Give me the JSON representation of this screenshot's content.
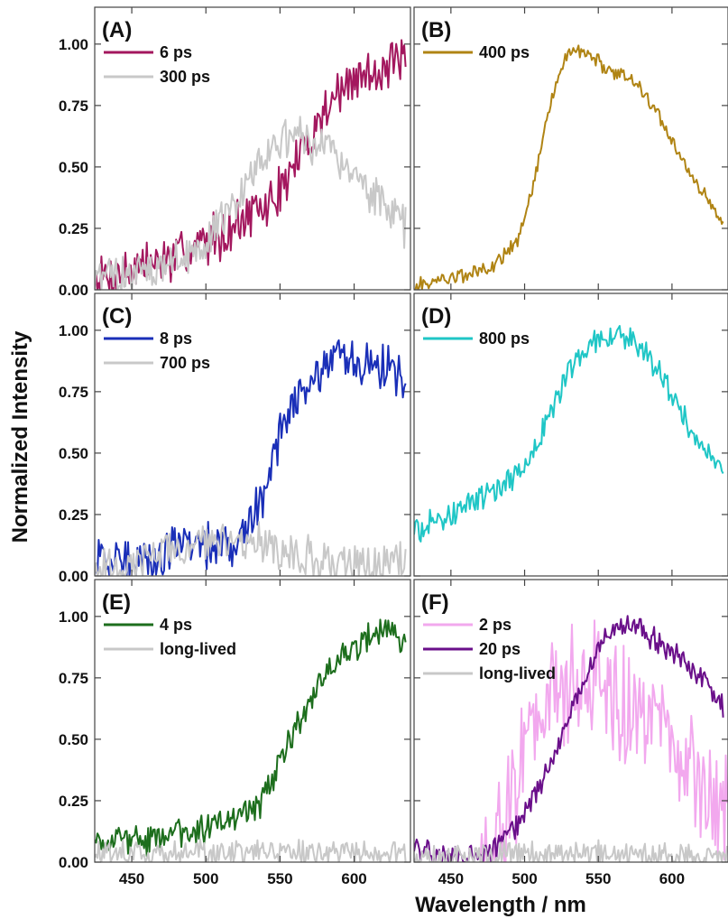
{
  "figure": {
    "ylabel": "Normalized Intensity",
    "xlabel": "Wavelength / nm"
  },
  "chart_data": [
    {
      "panel": "(A)",
      "type": "line",
      "xlim": [
        425,
        638
      ],
      "ylim": [
        0,
        1.15
      ],
      "xticks": [
        450,
        500,
        550,
        600
      ],
      "yticks": [
        "0.00",
        "0.25",
        "0.50",
        "0.75",
        "1.00"
      ],
      "show_x_tick_labels": false,
      "show_y_tick_labels": true,
      "series": [
        {
          "name": "6 ps",
          "color": "#a3175e",
          "noise": 0.12,
          "x": [
            425,
            440,
            460,
            480,
            500,
            520,
            540,
            555,
            570,
            585,
            600,
            615,
            625,
            635
          ],
          "y": [
            0.04,
            0.07,
            0.1,
            0.13,
            0.2,
            0.27,
            0.33,
            0.45,
            0.62,
            0.78,
            0.85,
            0.9,
            0.92,
            0.92
          ]
        },
        {
          "name": "300 ps",
          "color": "#c8c8c8",
          "noise": 0.1,
          "x": [
            425,
            440,
            460,
            480,
            500,
            520,
            535,
            550,
            565,
            580,
            595,
            610,
            625,
            635
          ],
          "y": [
            0.04,
            0.06,
            0.08,
            0.11,
            0.2,
            0.36,
            0.52,
            0.6,
            0.62,
            0.58,
            0.5,
            0.4,
            0.32,
            0.26
          ]
        }
      ]
    },
    {
      "panel": "(B)",
      "type": "line",
      "xlim": [
        425,
        638
      ],
      "ylim": [
        0,
        1.15
      ],
      "xticks": [
        450,
        500,
        550,
        600
      ],
      "yticks": [
        "0.00",
        "0.25",
        "0.50",
        "0.75",
        "1.00"
      ],
      "show_x_tick_labels": false,
      "show_y_tick_labels": false,
      "series": [
        {
          "name": "400 ps",
          "color": "#b08414",
          "noise": 0.035,
          "x": [
            425,
            440,
            460,
            480,
            495,
            505,
            515,
            525,
            535,
            545,
            555,
            565,
            575,
            590,
            605,
            620,
            635
          ],
          "y": [
            0.01,
            0.04,
            0.06,
            0.1,
            0.2,
            0.4,
            0.7,
            0.92,
            0.98,
            0.96,
            0.9,
            0.88,
            0.85,
            0.72,
            0.55,
            0.4,
            0.28
          ]
        }
      ]
    },
    {
      "panel": "(C)",
      "type": "line",
      "xlim": [
        425,
        638
      ],
      "ylim": [
        0,
        1.15
      ],
      "xticks": [
        450,
        500,
        550,
        600
      ],
      "yticks": [
        "0.00",
        "0.25",
        "0.50",
        "0.75",
        "1.00"
      ],
      "show_x_tick_labels": false,
      "show_y_tick_labels": true,
      "series": [
        {
          "name": "8 ps",
          "color": "#1a2fb8",
          "noise": 0.12,
          "x": [
            425,
            440,
            460,
            480,
            500,
            520,
            535,
            545,
            560,
            575,
            590,
            605,
            620,
            635
          ],
          "y": [
            0.04,
            0.06,
            0.08,
            0.1,
            0.12,
            0.16,
            0.26,
            0.5,
            0.7,
            0.8,
            0.86,
            0.88,
            0.86,
            0.8
          ]
        },
        {
          "name": "700 ps",
          "color": "#c8c8c8",
          "noise": 0.1,
          "x": [
            425,
            450,
            475,
            500,
            525,
            540,
            560,
            580,
            600,
            620,
            635
          ],
          "y": [
            0.03,
            0.04,
            0.1,
            0.14,
            0.15,
            0.12,
            0.08,
            0.06,
            0.05,
            0.05,
            0.05
          ]
        }
      ]
    },
    {
      "panel": "(D)",
      "type": "line",
      "xlim": [
        425,
        638
      ],
      "ylim": [
        0,
        1.15
      ],
      "xticks": [
        450,
        500,
        550,
        600
      ],
      "yticks": [
        "0.00",
        "0.25",
        "0.50",
        "0.75",
        "1.00"
      ],
      "show_x_tick_labels": false,
      "show_y_tick_labels": false,
      "series": [
        {
          "name": "800 ps",
          "color": "#1fc6c6",
          "noise": 0.06,
          "x": [
            425,
            445,
            465,
            485,
            500,
            515,
            530,
            545,
            560,
            575,
            590,
            605,
            620,
            635
          ],
          "y": [
            0.18,
            0.24,
            0.3,
            0.36,
            0.44,
            0.62,
            0.84,
            0.95,
            0.98,
            0.96,
            0.85,
            0.68,
            0.52,
            0.42
          ]
        }
      ]
    },
    {
      "panel": "(E)",
      "type": "line",
      "xlim": [
        425,
        638
      ],
      "ylim": [
        0,
        1.15
      ],
      "xticks": [
        450,
        500,
        550,
        600
      ],
      "yticks": [
        "0.00",
        "0.25",
        "0.50",
        "0.75",
        "1.00"
      ],
      "show_x_tick_labels": true,
      "show_y_tick_labels": true,
      "series": [
        {
          "name": "4 ps",
          "color": "#1d6e1d",
          "noise": 0.07,
          "x": [
            425,
            440,
            460,
            480,
            500,
            520,
            535,
            550,
            565,
            580,
            595,
            610,
            625,
            635
          ],
          "y": [
            0.1,
            0.08,
            0.09,
            0.12,
            0.14,
            0.17,
            0.22,
            0.4,
            0.6,
            0.75,
            0.85,
            0.92,
            0.96,
            0.9
          ]
        },
        {
          "name": "long-lived",
          "color": "#c8c8c8",
          "noise": 0.06,
          "x": [
            425,
            480,
            540,
            600,
            635
          ],
          "y": [
            0.03,
            0.04,
            0.04,
            0.04,
            0.04
          ]
        }
      ]
    },
    {
      "panel": "(F)",
      "type": "line",
      "xlim": [
        425,
        638
      ],
      "ylim": [
        0,
        1.15
      ],
      "xticks": [
        450,
        500,
        550,
        600
      ],
      "yticks": [
        "0.00",
        "0.25",
        "0.50",
        "0.75",
        "1.00"
      ],
      "show_x_tick_labels": true,
      "show_y_tick_labels": false,
      "series": [
        {
          "name": "2 ps",
          "color": "#f2a8ee",
          "noise": 0.3,
          "x": [
            470,
            480,
            490,
            505,
            520,
            535,
            550,
            565,
            580,
            595,
            610,
            625,
            638
          ],
          "y": [
            0.0,
            0.05,
            0.25,
            0.5,
            0.68,
            0.72,
            0.7,
            0.66,
            0.6,
            0.5,
            0.4,
            0.3,
            0.2
          ]
        },
        {
          "name": "20 ps",
          "color": "#6a0f8a",
          "noise": 0.06,
          "x": [
            425,
            445,
            465,
            480,
            495,
            510,
            525,
            540,
            555,
            570,
            585,
            600,
            620,
            635
          ],
          "y": [
            0.05,
            0.02,
            0.02,
            0.06,
            0.16,
            0.3,
            0.5,
            0.74,
            0.92,
            0.98,
            0.92,
            0.85,
            0.75,
            0.62
          ]
        },
        {
          "name": "long-lived",
          "color": "#c8c8c8",
          "noise": 0.06,
          "x": [
            425,
            480,
            540,
            600,
            638
          ],
          "y": [
            0.02,
            0.03,
            0.04,
            0.03,
            0.03
          ]
        }
      ]
    }
  ]
}
